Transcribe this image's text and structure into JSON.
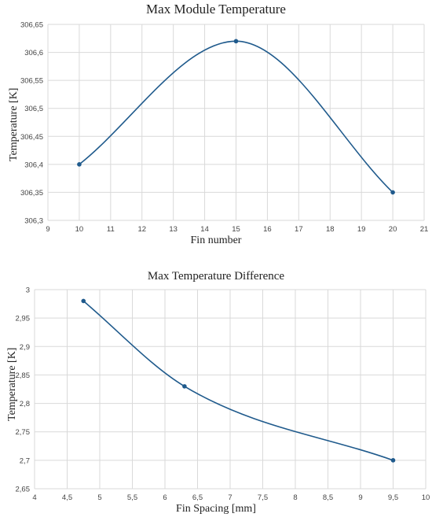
{
  "charts": [
    {
      "title": "Max Module Temperature",
      "xlabel": "Fin number",
      "ylabel": "Temperature [K]"
    },
    {
      "title": "Max Temperature Difference",
      "xlabel": "Fin Spacing   [mm]",
      "ylabel": "Temperature [K]"
    }
  ],
  "chart_data": [
    {
      "type": "line",
      "title": "Max Module Temperature",
      "xlabel": "Fin number",
      "ylabel": "Temperature [K]",
      "smooth": true,
      "grid": true,
      "line_color": "#1f5a8c",
      "xlim": [
        9,
        21
      ],
      "ylim": [
        306.3,
        306.65
      ],
      "x_ticks": [
        "9",
        "10",
        "11",
        "12",
        "13",
        "14",
        "15",
        "16",
        "17",
        "18",
        "19",
        "20",
        "21"
      ],
      "y_ticks": [
        "306,3",
        "306,35",
        "306,4",
        "306,45",
        "306,5",
        "306,55",
        "306,6",
        "306,65"
      ],
      "series": [
        {
          "x": [
            10,
            15,
            20
          ],
          "y": [
            306.4,
            306.62,
            306.35
          ]
        }
      ]
    },
    {
      "type": "line",
      "title": "Max Temperature Difference",
      "xlabel": "Fin Spacing   [mm]",
      "ylabel": "Temperature [K]",
      "smooth": true,
      "grid": true,
      "line_color": "#1f5a8c",
      "xlim": [
        4,
        10
      ],
      "ylim": [
        2.65,
        3.0
      ],
      "x_ticks": [
        "4",
        "4,5",
        "5",
        "5,5",
        "6",
        "6,5",
        "7",
        "7,5",
        "8",
        "8,5",
        "9",
        "9,5",
        "10"
      ],
      "y_ticks": [
        "2,65",
        "2,7",
        "2,75",
        "2,8",
        "2,85",
        "2,9",
        "2,95",
        "3"
      ],
      "series": [
        {
          "x": [
            4.75,
            6.3,
            9.5
          ],
          "y": [
            2.98,
            2.83,
            2.7
          ]
        }
      ]
    }
  ]
}
